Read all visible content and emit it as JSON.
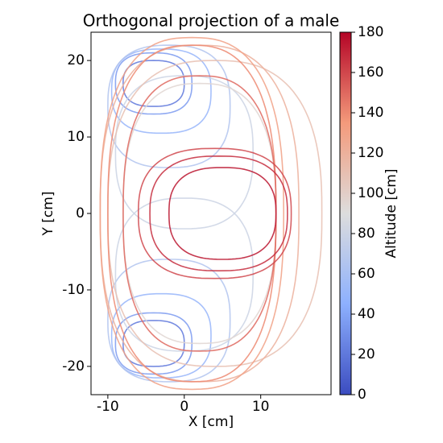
{
  "chart_data": {
    "type": "contour",
    "title": "Orthogonal projection of a male",
    "xlabel": "X [cm]",
    "ylabel": "Y [cm]",
    "colorbar_label": "Altitude [cm]",
    "xlim": [
      -12.2,
      19.2
    ],
    "ylim": [
      -23.7,
      23.7
    ],
    "xticks": [
      -10,
      0,
      10
    ],
    "yticks": [
      -20,
      -10,
      0,
      10,
      20
    ],
    "clim": [
      0,
      180
    ],
    "cticks": [
      0,
      20,
      40,
      60,
      80,
      100,
      120,
      140,
      160,
      180
    ],
    "colormap": [
      "#3b4cc0",
      "#8db0fe",
      "#dddddd",
      "#f49a7b",
      "#b40426"
    ],
    "contours": [
      {
        "altitude": 20,
        "x": -4,
        "y": 17,
        "rx": 4,
        "ry": 3
      },
      {
        "altitude": 35,
        "x": -4,
        "y": 17,
        "rx": 5,
        "ry": 4
      },
      {
        "altitude": 50,
        "x": -3,
        "y": 16,
        "rx": 6.5,
        "ry": 5.5
      },
      {
        "altitude": 65,
        "x": -2,
        "y": 14,
        "rx": 8,
        "ry": 8
      },
      {
        "altitude": 20,
        "x": -4,
        "y": -17,
        "rx": 4,
        "ry": 3
      },
      {
        "altitude": 35,
        "x": -4,
        "y": -17,
        "rx": 5,
        "ry": 4
      },
      {
        "altitude": 50,
        "x": -3,
        "y": -16,
        "rx": 6.5,
        "ry": 5.5
      },
      {
        "altitude": 65,
        "x": -2,
        "y": -14,
        "rx": 8,
        "ry": 8
      },
      {
        "altitude": 80,
        "x": 0,
        "y": 8,
        "rx": 9,
        "ry": 10
      },
      {
        "altitude": 80,
        "x": 0,
        "y": -8,
        "rx": 9,
        "ry": 10
      },
      {
        "altitude": 95,
        "x": 2,
        "y": 0,
        "rx": 10,
        "ry": 17
      },
      {
        "altitude": 110,
        "x": 4,
        "y": 0,
        "rx": 14,
        "ry": 20
      },
      {
        "altitude": 120,
        "x": 2,
        "y": 0,
        "rx": 13,
        "ry": 22
      },
      {
        "altitude": 130,
        "x": 1,
        "y": 0,
        "rx": 12,
        "ry": 23
      },
      {
        "altitude": 140,
        "x": 1,
        "y": 0,
        "rx": 11,
        "ry": 22
      },
      {
        "altitude": 150,
        "x": 2,
        "y": 0,
        "rx": 10,
        "ry": 18
      },
      {
        "altitude": 160,
        "x": 4,
        "y": 0,
        "rx": 10,
        "ry": 8.5
      },
      {
        "altitude": 168,
        "x": 4.5,
        "y": 0,
        "rx": 9,
        "ry": 7.5
      },
      {
        "altitude": 175,
        "x": 5,
        "y": 0,
        "rx": 7,
        "ry": 6
      }
    ]
  }
}
